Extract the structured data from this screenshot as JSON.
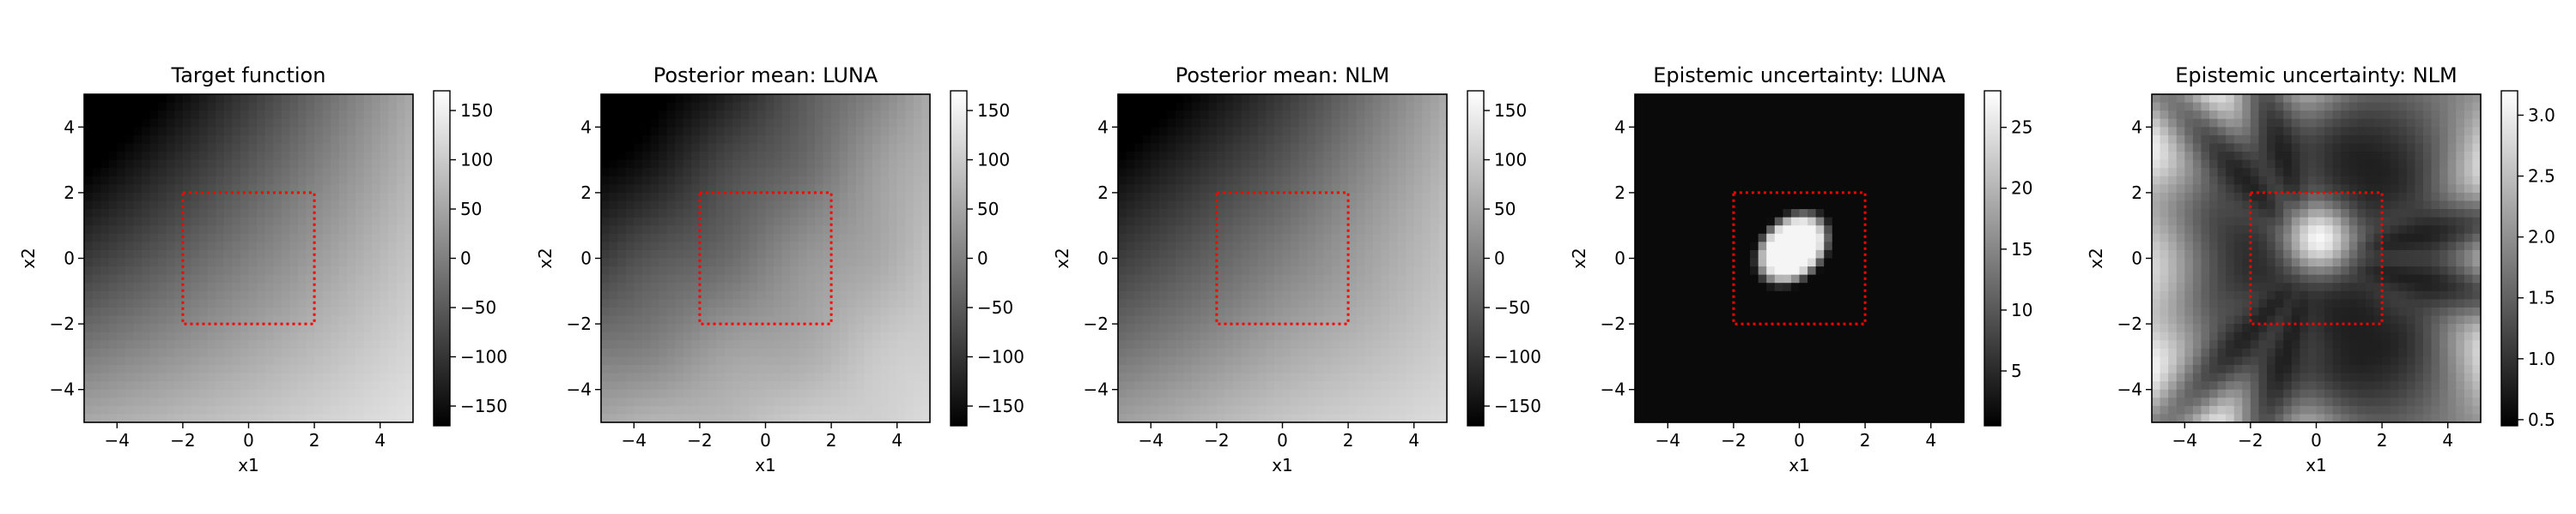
{
  "chart_data": [
    {
      "type": "heatmap",
      "title": "Target function",
      "xlabel": "x1",
      "ylabel": "x2",
      "xlim": [
        -5,
        5
      ],
      "ylim": [
        -5,
        5
      ],
      "xticks": [
        "−4",
        "−2",
        "0",
        "2",
        "4"
      ],
      "yticks": [
        "4",
        "2",
        "0",
        "−2",
        "−4"
      ],
      "colormap": "gray",
      "colorbar": {
        "range": [
          -170,
          170
        ],
        "ticks": [
          "150",
          "100",
          "50",
          "0",
          "−50",
          "−100",
          "−150"
        ],
        "tick_values": [
          150,
          100,
          50,
          0,
          -50,
          -100,
          -150
        ]
      },
      "field": "target",
      "region_box": {
        "x": [
          -2,
          2
        ],
        "y": [
          -2,
          2
        ],
        "color": "#ff0000",
        "style": "dotted"
      }
    },
    {
      "type": "heatmap",
      "title": "Posterior mean: LUNA",
      "xlabel": "x1",
      "ylabel": "x2",
      "xlim": [
        -5,
        5
      ],
      "ylim": [
        -5,
        5
      ],
      "xticks": [
        "−4",
        "−2",
        "0",
        "2",
        "4"
      ],
      "yticks": [
        "4",
        "2",
        "0",
        "−2",
        "−4"
      ],
      "colormap": "gray",
      "colorbar": {
        "range": [
          -170,
          170
        ],
        "ticks": [
          "150",
          "100",
          "50",
          "0",
          "−50",
          "−100",
          "−150"
        ],
        "tick_values": [
          150,
          100,
          50,
          0,
          -50,
          -100,
          -150
        ]
      },
      "field": "mean_luna",
      "region_box": {
        "x": [
          -2,
          2
        ],
        "y": [
          -2,
          2
        ],
        "color": "#ff0000",
        "style": "dotted"
      }
    },
    {
      "type": "heatmap",
      "title": "Posterior mean: NLM",
      "xlabel": "x1",
      "ylabel": "x2",
      "xlim": [
        -5,
        5
      ],
      "ylim": [
        -5,
        5
      ],
      "xticks": [
        "−4",
        "−2",
        "0",
        "2",
        "4"
      ],
      "yticks": [
        "4",
        "2",
        "0",
        "−2",
        "−4"
      ],
      "colormap": "gray",
      "colorbar": {
        "range": [
          -170,
          170
        ],
        "ticks": [
          "150",
          "100",
          "50",
          "0",
          "−50",
          "−100",
          "−150"
        ],
        "tick_values": [
          150,
          100,
          50,
          0,
          -50,
          -100,
          -150
        ]
      },
      "field": "mean_nlm",
      "region_box": {
        "x": [
          -2,
          2
        ],
        "y": [
          -2,
          2
        ],
        "color": "#ff0000",
        "style": "dotted"
      }
    },
    {
      "type": "heatmap",
      "title": "Epistemic uncertainty: LUNA",
      "xlabel": "x1",
      "ylabel": "x2",
      "xlim": [
        -5,
        5
      ],
      "ylim": [
        -5,
        5
      ],
      "xticks": [
        "−4",
        "−2",
        "0",
        "2",
        "4"
      ],
      "yticks": [
        "4",
        "2",
        "0",
        "−2",
        "−4"
      ],
      "colormap": "gray",
      "colorbar": {
        "range": [
          0.5,
          28
        ],
        "ticks": [
          "25",
          "20",
          "15",
          "10",
          "5"
        ],
        "tick_values": [
          25,
          20,
          15,
          10,
          5
        ]
      },
      "field": "unc_luna",
      "region_box": {
        "x": [
          -2,
          2
        ],
        "y": [
          -2,
          2
        ],
        "color": "#ff0000",
        "style": "dotted"
      }
    },
    {
      "type": "heatmap",
      "title": "Epistemic uncertainty: NLM",
      "xlabel": "x1",
      "ylabel": "x2",
      "xlim": [
        -5,
        5
      ],
      "ylim": [
        -5,
        5
      ],
      "xticks": [
        "−4",
        "−2",
        "0",
        "2",
        "4"
      ],
      "yticks": [
        "4",
        "2",
        "0",
        "−2",
        "−4"
      ],
      "colormap": "gray",
      "colorbar": {
        "range": [
          0.45,
          3.2
        ],
        "ticks": [
          "3.0",
          "2.5",
          "2.0",
          "1.5",
          "1.0",
          "0.5"
        ],
        "tick_values": [
          3.0,
          2.5,
          2.0,
          1.5,
          1.0,
          0.5
        ]
      },
      "field": "unc_nlm",
      "region_box": {
        "x": [
          -2,
          2
        ],
        "y": [
          -2,
          2
        ],
        "color": "#ff0000",
        "style": "dotted"
      }
    }
  ]
}
